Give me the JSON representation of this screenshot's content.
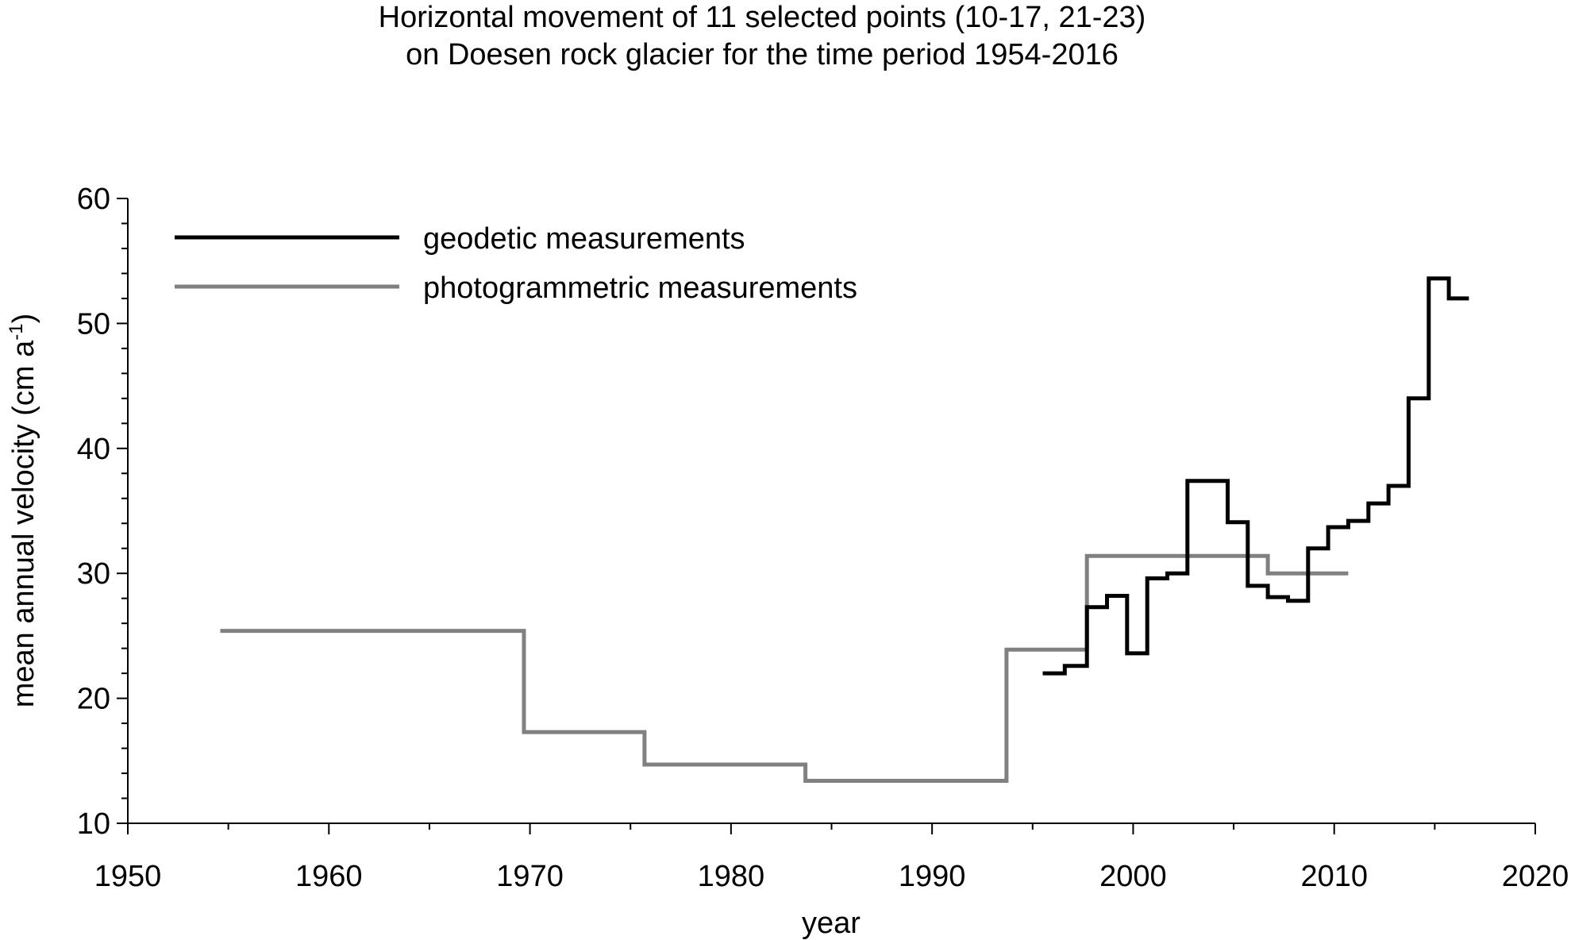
{
  "chart_data": {
    "type": "line",
    "step": true,
    "title": "Horizontal movement of 11 selected points (10-17, 21-23)",
    "subtitle": "on Doesen rock glacier for the time period 1954-2016",
    "xlabel": "year",
    "ylabel": "mean annual velocity (cm a",
    "ylabel_sup": "-1",
    "ylabel_end": ")",
    "xlim": [
      1950,
      2020
    ],
    "ylim": [
      10,
      60
    ],
    "x_ticks": [
      1950,
      1960,
      1970,
      1980,
      1990,
      2000,
      2010,
      2020
    ],
    "x_tick_labels": [
      "1950",
      "1960",
      "1970",
      "1980",
      "1990",
      "2000",
      "2010",
      "2020"
    ],
    "x_minor_step": 5,
    "y_ticks": [
      10,
      20,
      30,
      40,
      50,
      60
    ],
    "y_tick_labels": [
      "10",
      "20",
      "30",
      "40",
      "50",
      "60"
    ],
    "y_minor_step": 2,
    "grid": false,
    "legend_position": "top-left",
    "series": [
      {
        "name": "geodetic measurements",
        "color": "#000000",
        "segments": [
          {
            "from": 1995.5,
            "to": 1996.6,
            "value": 22.0
          },
          {
            "from": 1996.6,
            "to": 1997.7,
            "value": 22.6
          },
          {
            "from": 1997.7,
            "to": 1998.7,
            "value": 27.3
          },
          {
            "from": 1998.7,
            "to": 1999.7,
            "value": 28.2
          },
          {
            "from": 1999.7,
            "to": 2000.7,
            "value": 23.6
          },
          {
            "from": 2000.7,
            "to": 2001.7,
            "value": 29.6
          },
          {
            "from": 2001.7,
            "to": 2002.7,
            "value": 30.0
          },
          {
            "from": 2002.7,
            "to": 2004.7,
            "value": 37.4
          },
          {
            "from": 2004.7,
            "to": 2005.7,
            "value": 34.1
          },
          {
            "from": 2005.7,
            "to": 2006.7,
            "value": 29.0
          },
          {
            "from": 2006.7,
            "to": 2007.7,
            "value": 28.1
          },
          {
            "from": 2007.7,
            "to": 2008.7,
            "value": 27.8
          },
          {
            "from": 2008.7,
            "to": 2009.7,
            "value": 32.0
          },
          {
            "from": 2009.7,
            "to": 2010.7,
            "value": 33.7
          },
          {
            "from": 2010.7,
            "to": 2011.7,
            "value": 34.2
          },
          {
            "from": 2011.7,
            "to": 2012.7,
            "value": 35.6
          },
          {
            "from": 2012.7,
            "to": 2013.7,
            "value": 37.0
          },
          {
            "from": 2013.7,
            "to": 2014.7,
            "value": 44.0
          },
          {
            "from": 2014.7,
            "to": 2015.7,
            "value": 53.6
          },
          {
            "from": 2015.7,
            "to": 2016.7,
            "value": 52.0
          }
        ]
      },
      {
        "name": "photogrammetric measurements",
        "color": "#808080",
        "segments": [
          {
            "from": 1954.6,
            "to": 1969.7,
            "value": 25.4
          },
          {
            "from": 1969.7,
            "to": 1975.7,
            "value": 17.3
          },
          {
            "from": 1975.7,
            "to": 1983.7,
            "value": 14.7
          },
          {
            "from": 1983.7,
            "to": 1993.7,
            "value": 13.4
          },
          {
            "from": 1993.7,
            "to": 1997.7,
            "value": 23.9
          },
          {
            "from": 1997.7,
            "to": 2006.7,
            "value": 31.4
          },
          {
            "from": 2006.7,
            "to": 2010.7,
            "value": 30.0
          }
        ]
      }
    ]
  }
}
